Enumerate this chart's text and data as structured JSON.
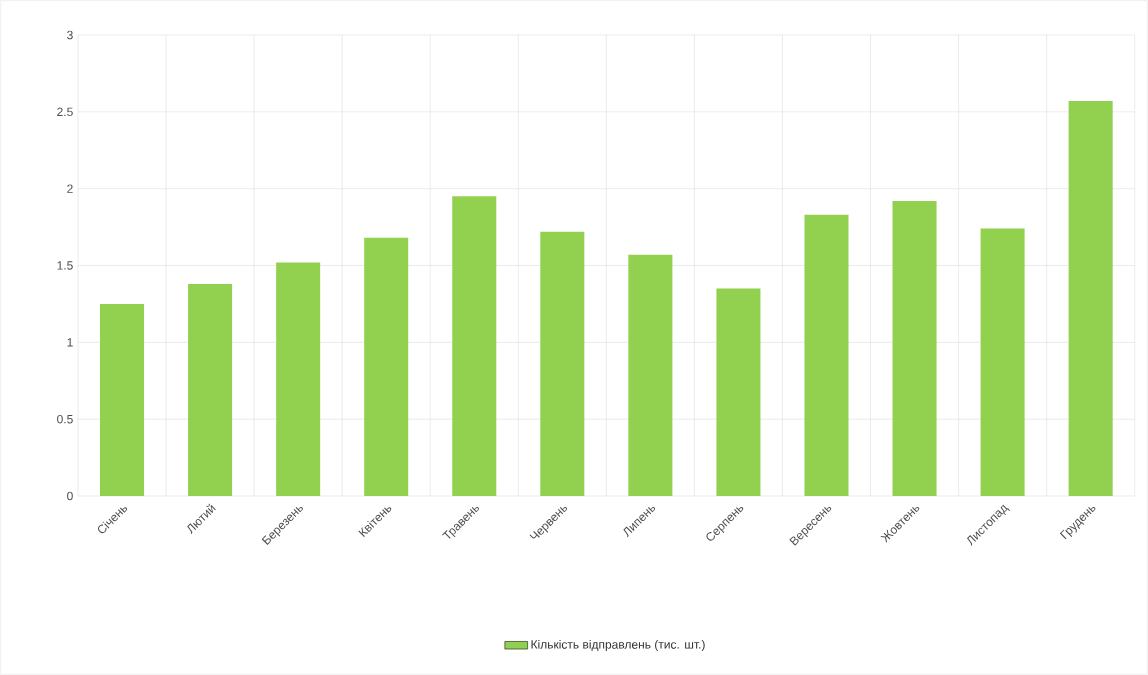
{
  "chart_data": {
    "type": "bar",
    "categories": [
      "Січень",
      "Лютий",
      "Березень",
      "Квітень",
      "Травень",
      "Червень",
      "Липень",
      "Серпень",
      "Вересень",
      "Жовтень",
      "Листопад",
      "Грудень"
    ],
    "series": [
      {
        "name": "Кількість відправлень (тис. шт.)",
        "color": "#92d050",
        "values": [
          1.25,
          1.38,
          1.52,
          1.68,
          1.95,
          1.72,
          1.57,
          1.35,
          1.83,
          1.92,
          1.74,
          2.57
        ]
      }
    ],
    "ylim": [
      0,
      3
    ],
    "yticks": [
      0,
      0.5,
      1,
      1.5,
      2,
      2.5,
      3
    ],
    "grid": true,
    "legend": "bottom"
  }
}
